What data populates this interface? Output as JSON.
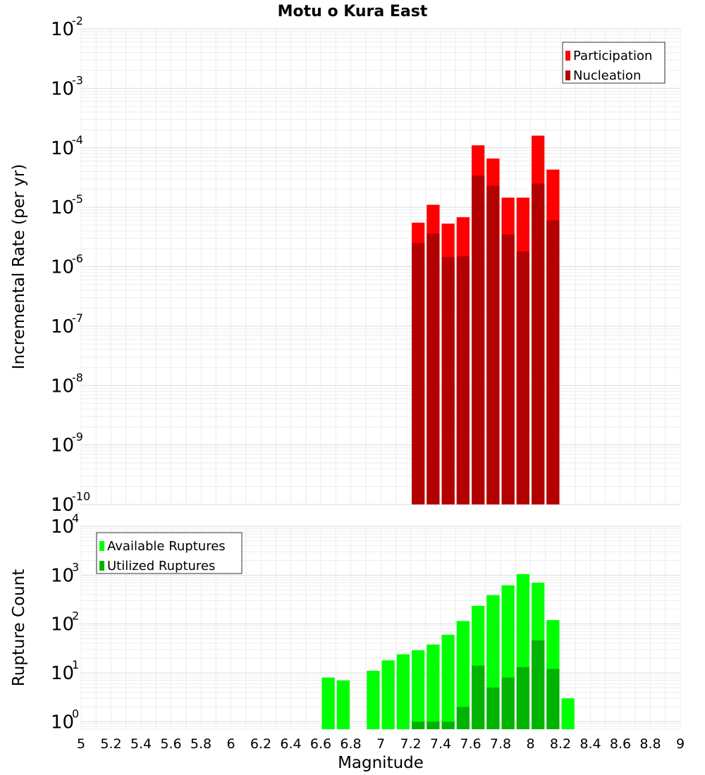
{
  "chart_data": [
    {
      "type": "bar",
      "title": "Motu o Kura East",
      "ylabel": "Incremental Rate (per yr)",
      "xlabel": "",
      "xlim": [
        5,
        9
      ],
      "ylim": [
        1e-10,
        0.01
      ],
      "yscale": "log",
      "ytick_exponents": [
        "-10",
        "-9",
        "-8",
        "-7",
        "-6",
        "-5",
        "-4",
        "-3",
        "-2"
      ],
      "ytick_base": "10",
      "grid": true,
      "legend_position": "top-right",
      "colors": {
        "Participation": "#ff0000",
        "Nucleation": "#b30000"
      },
      "x": [
        7.25,
        7.35,
        7.45,
        7.55,
        7.65,
        7.75,
        7.85,
        7.95,
        8.05,
        8.15
      ],
      "series": [
        {
          "name": "Participation",
          "values": [
            5.5e-06,
            1.1e-05,
            5.3e-06,
            6.8e-06,
            0.00011,
            6.6e-05,
            1.45e-05,
            1.45e-05,
            0.00016,
            4.3e-05
          ]
        },
        {
          "name": "Nucleation",
          "values": [
            2.5e-06,
            3.6e-06,
            1.45e-06,
            1.5e-06,
            3.4e-05,
            2.3e-05,
            3.5e-06,
            1.8e-06,
            2.5e-05,
            6e-06
          ]
        }
      ]
    },
    {
      "type": "bar",
      "title": "",
      "ylabel": "Rupture Count",
      "xlabel": "Magnitude",
      "xlim": [
        5,
        9
      ],
      "ylim": [
        0.7,
        10000
      ],
      "yscale": "log",
      "ytick_exponents": [
        "0",
        "1",
        "2",
        "3",
        "4"
      ],
      "ytick_base": "10",
      "xticks": [
        "5",
        "5.2",
        "5.4",
        "5.6",
        "5.8",
        "6",
        "6.2",
        "6.4",
        "6.6",
        "6.8",
        "7",
        "7.2",
        "7.4",
        "7.6",
        "7.8",
        "8",
        "8.2",
        "8.4",
        "8.6",
        "8.8",
        "9"
      ],
      "grid": true,
      "legend_position": "top-left",
      "colors": {
        "Available Ruptures": "#00ff00",
        "Utilized Ruptures": "#00b300"
      },
      "x": [
        6.65,
        6.75,
        6.95,
        7.05,
        7.15,
        7.25,
        7.35,
        7.45,
        7.55,
        7.65,
        7.75,
        7.85,
        7.95,
        8.05,
        8.15,
        8.25
      ],
      "series": [
        {
          "name": "Available Ruptures",
          "values": [
            8,
            7,
            11,
            18,
            24,
            29,
            38,
            60,
            115,
            235,
            390,
            620,
            1050,
            700,
            120,
            3
          ]
        },
        {
          "name": "Utilized Ruptures",
          "values": [
            0,
            0,
            0,
            0,
            0,
            1,
            1,
            1,
            2,
            14,
            5,
            8,
            13,
            46,
            12,
            0
          ]
        }
      ]
    }
  ]
}
